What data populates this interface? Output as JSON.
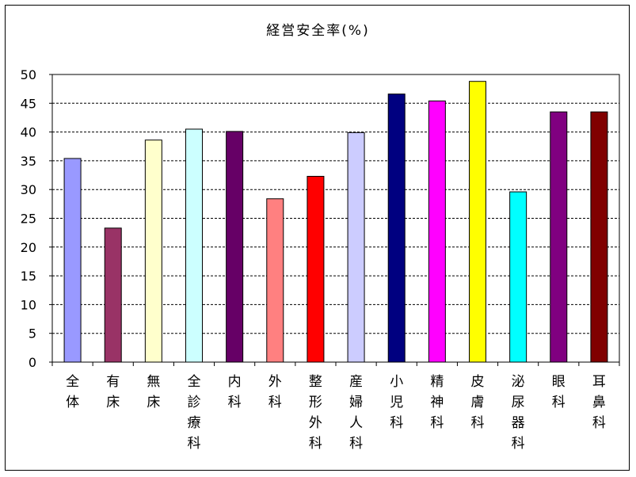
{
  "chart_data": {
    "type": "bar",
    "title": "経営安全率(%)",
    "ylim": [
      0,
      50
    ],
    "yticks": [
      0,
      5,
      10,
      15,
      20,
      25,
      30,
      35,
      40,
      45,
      50
    ],
    "grid": "horizontal dashed",
    "categories": [
      "全体",
      "有床",
      "無床",
      "全診療科",
      "内科",
      "外科",
      "整形外科",
      "産婦人科",
      "小児科",
      "精神科",
      "皮膚科",
      "泌尿器科",
      "眼科",
      "耳鼻科"
    ],
    "values": [
      35.4,
      23.3,
      38.6,
      40.5,
      40.1,
      28.4,
      32.3,
      39.9,
      46.6,
      45.4,
      48.8,
      29.6,
      43.5,
      43.5
    ],
    "colors": [
      "#9999ff",
      "#993366",
      "#ffffcc",
      "#ccffff",
      "#660066",
      "#ff8080",
      "#ff0000",
      "#ccccff",
      "#000080",
      "#ff00ff",
      "#ffff00",
      "#00ffff",
      "#800080",
      "#800000"
    ]
  }
}
